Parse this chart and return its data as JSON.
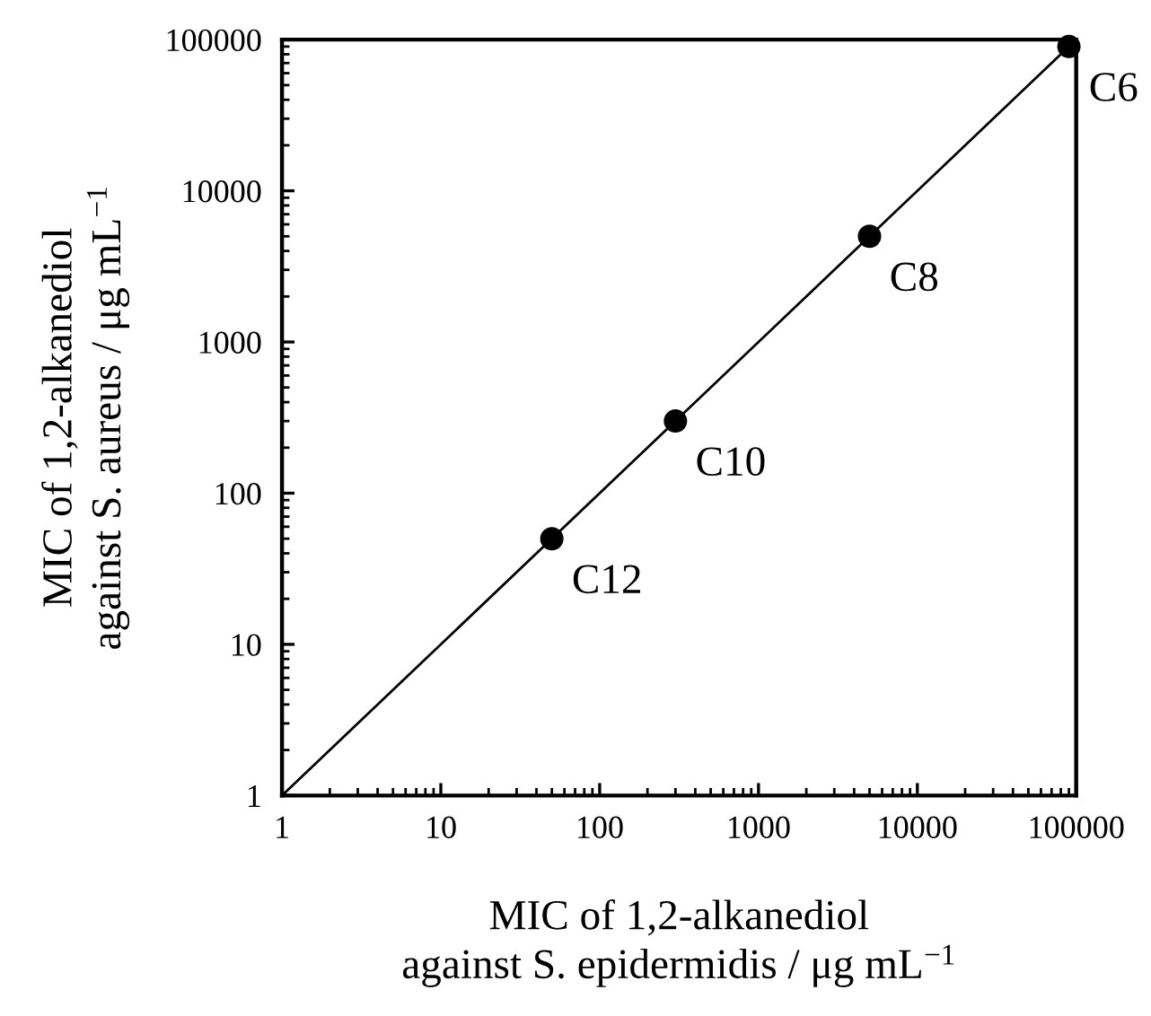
{
  "chart_data": {
    "type": "scatter",
    "log": "xy",
    "marker": "circle",
    "grid": false,
    "legend": false,
    "xlabel": "MIC of 1,2-alkanediol\nagainst S. epidermidis / μg mL$^{−1}$",
    "ylabel": "MIC of 1,2-alkanediol\nagainst S. aureus / μg mL$^{−1}$",
    "xlim": [
      1,
      100000
    ],
    "ylim": [
      1,
      100000
    ],
    "xticks": [
      1,
      10,
      100,
      1000,
      10000,
      100000
    ],
    "yticks": [
      1,
      10,
      100,
      1000,
      10000,
      100000
    ],
    "series": [
      {
        "type": "line",
        "color": "#000000",
        "marker": "none",
        "line_style": "solid",
        "x": [
          1,
          100000
        ],
        "values": [
          1,
          100000
        ]
      },
      {
        "color": "#000000",
        "x": [
          50,
          300,
          5000,
          90000
        ],
        "values": [
          50,
          300,
          5000,
          90000
        ]
      }
    ],
    "annotations": [
      {
        "text": "C12",
        "x": 50,
        "y": 50
      },
      {
        "text": "C10",
        "x": 300,
        "y": 300
      },
      {
        "text": "C8",
        "x": 5000,
        "y": 5000
      },
      {
        "text": "C6",
        "x": 90000,
        "y": 90000
      }
    ]
  }
}
